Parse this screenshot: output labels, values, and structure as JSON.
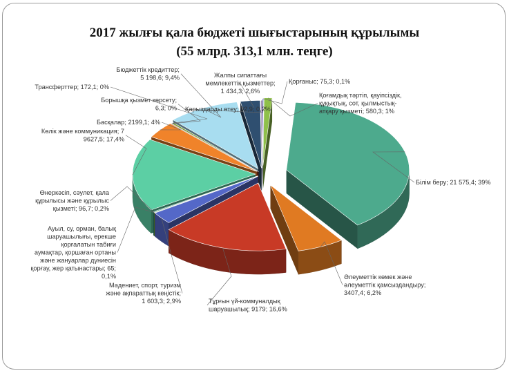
{
  "chart_data": {
    "type": "pie",
    "title_line1": "2017 жылғы қала бюджеті шығыстарының құрылымы",
    "title_line2": "(55 млрд. 313,1 млн. теңге)",
    "slices": [
      {
        "key": "korganys",
        "value": 75.3,
        "color": "#3f52b5",
        "label_lines": [
          "Қорғаныс; 75,3; 0,1%"
        ]
      },
      {
        "key": "kogamdyk",
        "value": 580.3,
        "color": "#8fc04a",
        "label_lines": [
          "Қоғамдық тәртіп, қауіпсіздік,",
          "құқықтық, сот, қылмыстық-",
          "атқару қызметі; 580,3; 1%"
        ]
      },
      {
        "key": "bilim",
        "value": 21575.4,
        "color": "#4daa8d",
        "label_lines": [
          "Білім беру; 21 575,4; 39%"
        ]
      },
      {
        "key": "aleumettik",
        "value": 3407.4,
        "color": "#e07a22",
        "label_lines": [
          "Әлеуметтік көмек және",
          "әлеуметтік қамсыздандыру;",
          "3407,4; 6,2%"
        ]
      },
      {
        "key": "turgyn",
        "value": 9179,
        "color": "#c83a26",
        "label_lines": [
          "Тұрғын үй-коммуналдық",
          "шаруашылық; 9179; 16,6%"
        ]
      },
      {
        "key": "madeniet",
        "value": 1603.3,
        "color": "#5468c8",
        "label_lines": [
          "Мәдениет, спорт, туризм",
          "және ақпараттық кеңістік;",
          "1 603,3; 2,9%"
        ]
      },
      {
        "key": "auyl",
        "value": 65,
        "color": "#6fae3c",
        "label_lines": [
          "Ауыл, су, орман, балық",
          "шаруашылығы, ерекше",
          "қорғалатын табиғи",
          "аумақтар, қоршаған ортаны",
          "және жануарлар дүниесін",
          "қорғау, жер қатынастары; 65;",
          "0,1%"
        ]
      },
      {
        "key": "onerkasip",
        "value": 96.7,
        "color": "#2f8a7a",
        "label_lines": [
          "Өнеркәсіп, сәулет, қала",
          "құрылысы және құрылыс",
          "қызметі; 96,7; 0,2%"
        ]
      },
      {
        "key": "kolik",
        "value": 9627.5,
        "color": "#5ccfa4",
        "label_lines": [
          "Көлік және коммуникация; 7",
          "9627,5; 17,4%"
        ]
      },
      {
        "key": "baskalar",
        "value": 2199.1,
        "color": "#f0832a",
        "label_lines": [
          "Басқалар; 2199,1; 4%"
        ]
      },
      {
        "key": "boryshka",
        "value": 6.3,
        "color": "#8a2b1c",
        "label_lines": [
          "Борышқа қызмет көрсету;",
          "6,3; 0%"
        ]
      },
      {
        "key": "transfert",
        "value": 172.1,
        "color": "#7a9a3a",
        "label_lines": [
          "Трансферттер; 172,1; 0%"
        ]
      },
      {
        "key": "kredit",
        "value": 5198.6,
        "color": "#a8ddf0",
        "label_lines": [
          "Бюджеттік кредиттер;",
          "5 198,6; 9,4%"
        ]
      },
      {
        "key": "zhalpy",
        "value": 1434.3,
        "color": "#2f4f70",
        "label_lines": [
          "Жалпы сипаттағы",
          "мемлекеттік қызметтер;",
          "1 434,3; 2,6%"
        ]
      },
      {
        "key": "karyz",
        "value": 92.9,
        "color": "#6a3b8c",
        "label_lines": [
          "Қарыздарды өтеу; 92,9; 0,2%"
        ]
      }
    ]
  }
}
